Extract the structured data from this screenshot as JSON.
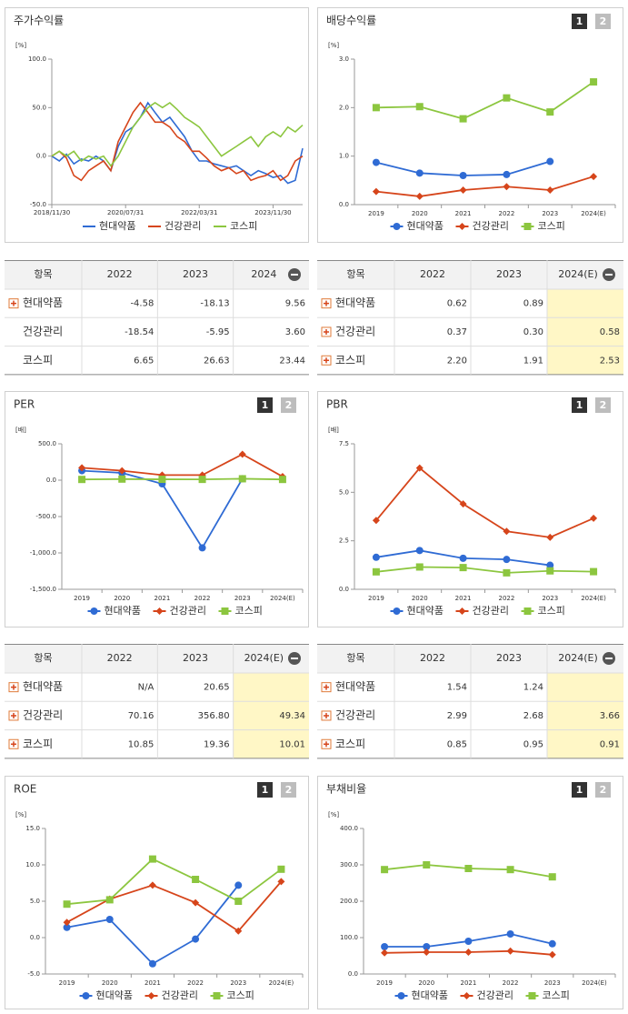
{
  "chart_data": [
    {
      "type": "line",
      "title": "주가수익률",
      "unit": "[%]",
      "markers": false,
      "x": [
        "2018/11/30",
        "2019/01/31",
        "2019/03/31",
        "2019/05/31",
        "2019/07/31",
        "2019/09/30",
        "2019/11/30",
        "2020/01/31",
        "2020/03/31",
        "2020/05/31",
        "2020/07/31",
        "2020/09/30",
        "2020/11/30",
        "2021/01/31",
        "2021/03/31",
        "2021/05/31",
        "2021/07/31",
        "2021/09/30",
        "2021/11/30",
        "2022/01/31",
        "2022/03/31",
        "2022/05/31",
        "2022/07/31",
        "2022/09/30",
        "2022/11/30",
        "2023/01/31",
        "2023/03/31",
        "2023/05/31",
        "2023/07/31",
        "2023/09/30",
        "2023/11/30",
        "2024/01/31",
        "2024/03/31",
        "2024/05/31",
        "2024/07/31"
      ],
      "xlim": [
        "2018/11/30",
        "2024/07/31"
      ],
      "xticks": [
        "2018/11/30",
        "2020/07/31",
        "2022/03/31",
        "2023/11/30"
      ],
      "ylim": [
        -50,
        100
      ],
      "yticks": [
        {
          "value": -50,
          "label": "-50.0"
        },
        {
          "value": 0,
          "label": "0.0"
        },
        {
          "value": 50,
          "label": "50.0"
        },
        {
          "value": 100,
          "label": "100.0"
        }
      ],
      "series": [
        {
          "name": "현대약품",
          "color": "#2f6bd4",
          "values": [
            0,
            -5,
            2,
            -8,
            -3,
            -5,
            0,
            -5,
            -15,
            10,
            25,
            30,
            40,
            55,
            45,
            35,
            40,
            30,
            20,
            5,
            -5,
            -5,
            -8,
            -10,
            -12,
            -10,
            -15,
            -20,
            -15,
            -18,
            -22,
            -20,
            -28,
            -25,
            8
          ]
        },
        {
          "name": "건강관리",
          "color": "#d6451b",
          "values": [
            0,
            5,
            -2,
            -20,
            -25,
            -15,
            -10,
            -5,
            -15,
            15,
            30,
            45,
            55,
            45,
            35,
            35,
            30,
            20,
            15,
            5,
            5,
            -2,
            -10,
            -15,
            -12,
            -18,
            -15,
            -25,
            -22,
            -20,
            -15,
            -25,
            -20,
            -5,
            0
          ]
        },
        {
          "name": "코스피",
          "color": "#8cc63f",
          "values": [
            0,
            5,
            0,
            5,
            -5,
            0,
            -3,
            0,
            -10,
            0,
            15,
            30,
            40,
            50,
            55,
            50,
            55,
            48,
            40,
            35,
            30,
            20,
            10,
            0,
            5,
            10,
            15,
            20,
            10,
            20,
            25,
            20,
            30,
            25,
            32
          ]
        }
      ]
    },
    {
      "type": "line",
      "title": "배당수익률",
      "buttons": [
        "1",
        "2"
      ],
      "unit": "[%]",
      "markers": true,
      "categories": [
        "2019",
        "2020",
        "2021",
        "2022",
        "2023",
        "2024(E)"
      ],
      "ylim": [
        0,
        3
      ],
      "yticks": [
        {
          "value": 0,
          "label": "0.0"
        },
        {
          "value": 1,
          "label": "1.0"
        },
        {
          "value": 2,
          "label": "2.0"
        },
        {
          "value": 3,
          "label": "3.0"
        }
      ],
      "series": [
        {
          "name": "현대약품",
          "color": "#2f6bd4",
          "values": [
            0.87,
            0.65,
            0.6,
            0.62,
            0.89,
            null
          ]
        },
        {
          "name": "건강관리",
          "color": "#d6451b",
          "values": [
            0.27,
            0.17,
            0.3,
            0.37,
            0.3,
            0.58
          ]
        },
        {
          "name": "코스피",
          "color": "#8cc63f",
          "values": [
            2.0,
            2.02,
            1.77,
            2.2,
            1.91,
            2.53
          ]
        }
      ]
    },
    {
      "type": "line",
      "title": "PER",
      "buttons": [
        "1",
        "2"
      ],
      "unit": "[배]",
      "markers": true,
      "categories": [
        "2019",
        "2020",
        "2021",
        "2022",
        "2023",
        "2024(E)"
      ],
      "ylim": [
        -1500,
        500
      ],
      "yticks": [
        {
          "value": 500,
          "label": "500.0"
        },
        {
          "value": 0,
          "label": "0.0"
        },
        {
          "value": -500,
          "label": "-500.0"
        },
        {
          "value": -1000,
          "label": "-1,000.0"
        },
        {
          "value": -1500,
          "label": "-1,500.0"
        }
      ],
      "series": [
        {
          "name": "현대약품",
          "color": "#2f6bd4",
          "values": [
            130,
            100,
            -50,
            -930,
            20.65,
            null
          ]
        },
        {
          "name": "건강관리",
          "color": "#d6451b",
          "values": [
            170,
            130,
            70,
            70.16,
            356.8,
            49.34
          ]
        },
        {
          "name": "코스피",
          "color": "#8cc63f",
          "values": [
            10,
            15,
            12,
            10.85,
            19.36,
            10.01
          ]
        }
      ]
    },
    {
      "type": "line",
      "title": "PBR",
      "buttons": [
        "1",
        "2"
      ],
      "unit": "[배]",
      "markers": true,
      "categories": [
        "2019",
        "2020",
        "2021",
        "2022",
        "2023",
        "2024(E)"
      ],
      "ylim": [
        0,
        7.5
      ],
      "yticks": [
        {
          "value": 0,
          "label": "0.0"
        },
        {
          "value": 2.5,
          "label": "2.5"
        },
        {
          "value": 5,
          "label": "5.0"
        },
        {
          "value": 7.5,
          "label": "7.5"
        }
      ],
      "series": [
        {
          "name": "현대약품",
          "color": "#2f6bd4",
          "values": [
            1.65,
            2.0,
            1.6,
            1.54,
            1.24,
            null
          ]
        },
        {
          "name": "건강관리",
          "color": "#d6451b",
          "values": [
            3.55,
            6.25,
            4.4,
            2.99,
            2.68,
            3.66
          ]
        },
        {
          "name": "코스피",
          "color": "#8cc63f",
          "values": [
            0.9,
            1.15,
            1.12,
            0.85,
            0.95,
            0.91
          ]
        }
      ]
    },
    {
      "type": "line",
      "title": "ROE",
      "buttons": [
        "1",
        "2"
      ],
      "unit": "[%]",
      "markers": true,
      "categories": [
        "2019",
        "2020",
        "2021",
        "2022",
        "2023",
        "2024(E)"
      ],
      "ylim": [
        -5,
        15
      ],
      "yticks": [
        {
          "value": -5,
          "label": "-5.0"
        },
        {
          "value": 0,
          "label": "0.0"
        },
        {
          "value": 5,
          "label": "5.0"
        },
        {
          "value": 10,
          "label": "10.0"
        },
        {
          "value": 15,
          "label": "15.0"
        }
      ],
      "series": [
        {
          "name": "현대약품",
          "color": "#2f6bd4",
          "values": [
            1.4,
            2.5,
            -3.6,
            -0.2,
            7.2,
            null
          ]
        },
        {
          "name": "건강관리",
          "color": "#d6451b",
          "values": [
            2.1,
            5.3,
            7.2,
            4.8,
            0.9,
            7.7
          ]
        },
        {
          "name": "코스피",
          "color": "#8cc63f",
          "values": [
            4.6,
            5.2,
            10.8,
            8.0,
            5.0,
            9.4
          ]
        }
      ]
    },
    {
      "type": "line",
      "title": "부채비율",
      "buttons": [
        "1",
        "2"
      ],
      "unit": "[%]",
      "markers": true,
      "categories": [
        "2019",
        "2020",
        "2021",
        "2022",
        "2023",
        "2024(E)"
      ],
      "ylim": [
        0,
        400
      ],
      "yticks": [
        {
          "value": 0,
          "label": "0.0"
        },
        {
          "value": 100,
          "label": "100.0"
        },
        {
          "value": 200,
          "label": "200.0"
        },
        {
          "value": 300,
          "label": "300.0"
        },
        {
          "value": 400,
          "label": "400.0"
        }
      ],
      "series": [
        {
          "name": "현대약품",
          "color": "#2f6bd4",
          "values": [
            75,
            75,
            90,
            110,
            83,
            null
          ]
        },
        {
          "name": "건강관리",
          "color": "#d6451b",
          "values": [
            58,
            60,
            60,
            63,
            53,
            null
          ]
        },
        {
          "name": "코스피",
          "color": "#8cc63f",
          "values": [
            287,
            300,
            290,
            287,
            267,
            null
          ]
        }
      ]
    }
  ],
  "tables": [
    {
      "columns": [
        "항목",
        "2022",
        "2023",
        "2024"
      ],
      "highlight_last": false,
      "row_icons": [
        true,
        false,
        false
      ],
      "rows": [
        [
          "현대약품",
          "-4.58",
          "-18.13",
          "9.56"
        ],
        [
          "건강관리",
          "-18.54",
          "-5.95",
          "3.60"
        ],
        [
          "코스피",
          "6.65",
          "26.63",
          "23.44"
        ]
      ]
    },
    {
      "columns": [
        "항목",
        "2022",
        "2023",
        "2024(E)"
      ],
      "highlight_last": true,
      "row_icons": [
        true,
        true,
        true
      ],
      "rows": [
        [
          "현대약품",
          "0.62",
          "0.89",
          null
        ],
        [
          "건강관리",
          "0.37",
          "0.30",
          "0.58"
        ],
        [
          "코스피",
          "2.20",
          "1.91",
          "2.53"
        ]
      ]
    },
    {
      "columns": [
        "항목",
        "2022",
        "2023",
        "2024(E)"
      ],
      "highlight_last": true,
      "row_icons": [
        true,
        true,
        true
      ],
      "rows": [
        [
          "현대약품",
          "N/A",
          "20.65",
          null
        ],
        [
          "건강관리",
          "70.16",
          "356.80",
          "49.34"
        ],
        [
          "코스피",
          "10.85",
          "19.36",
          "10.01"
        ]
      ]
    },
    {
      "columns": [
        "항목",
        "2022",
        "2023",
        "2024(E)"
      ],
      "highlight_last": true,
      "row_icons": [
        true,
        true,
        true
      ],
      "rows": [
        [
          "현대약품",
          "1.54",
          "1.24",
          null
        ],
        [
          "건강관리",
          "2.99",
          "2.68",
          "3.66"
        ],
        [
          "코스피",
          "0.85",
          "0.95",
          "0.91"
        ]
      ]
    }
  ]
}
